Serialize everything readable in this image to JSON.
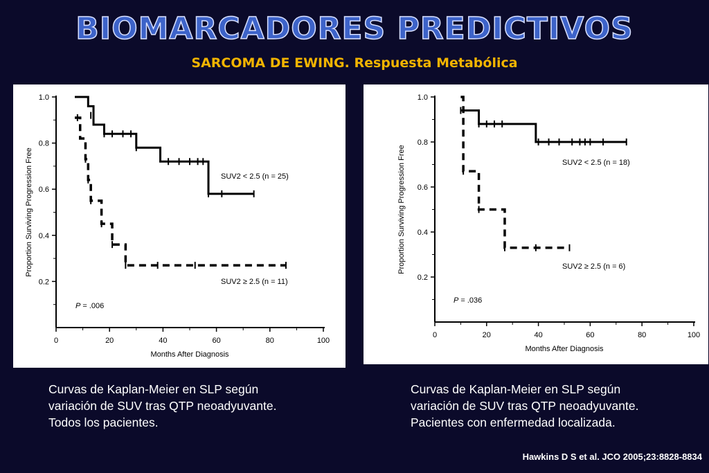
{
  "title": "BIOMARCADORES PREDICTIVOS",
  "subtitle": "SARCOMA DE EWING. Respuesta Metabólica",
  "citation": "Hawkins D S et al. JCO 2005;23:8828-8834",
  "captions": {
    "left": [
      "Curvas de Kaplan-Meier en SLP según",
      "variación de SUV tras QTP neoadyuvante.",
      "Todos los pacientes."
    ],
    "right": [
      "Curvas de Kaplan-Meier en SLP según",
      "variación de SUV tras QTP neoadyuvante.",
      "Pacientes con enfermedad localizada."
    ]
  },
  "chart_data": [
    {
      "type": "line",
      "xlabel": "Months After Diagnosis",
      "ylabel": "Proportion Surviving Progression Free",
      "xlim": [
        0,
        100
      ],
      "ylim": [
        0,
        1.0
      ],
      "x_ticks": [
        0,
        20,
        40,
        60,
        80,
        100
      ],
      "y_ticks": [
        0.2,
        0.4,
        0.6,
        0.8,
        1.0
      ],
      "pvalue": ".006",
      "series": [
        {
          "name": "SUV2 < 2.5 (n = 25)",
          "style": "solid",
          "steps": [
            [
              7,
              1.0
            ],
            [
              12,
              0.96
            ],
            [
              14,
              0.88
            ],
            [
              18,
              0.84
            ],
            [
              30,
              0.78
            ],
            [
              39,
              0.72
            ],
            [
              57,
              0.58
            ],
            [
              74,
              0.58
            ]
          ],
          "censored": [
            [
              13,
              0.92
            ],
            [
              18,
              0.84
            ],
            [
              21,
              0.84
            ],
            [
              25,
              0.84
            ],
            [
              28,
              0.84
            ],
            [
              30,
              0.78
            ],
            [
              42,
              0.72
            ],
            [
              46,
              0.72
            ],
            [
              50,
              0.72
            ],
            [
              53,
              0.72
            ],
            [
              55,
              0.72
            ],
            [
              57,
              0.58
            ],
            [
              62,
              0.58
            ],
            [
              74,
              0.58
            ]
          ]
        },
        {
          "name": "SUV2 ≥ 2.5 (n = 11)",
          "style": "dashed",
          "steps": [
            [
              7,
              0.91
            ],
            [
              9,
              0.82
            ],
            [
              11,
              0.73
            ],
            [
              12,
              0.64
            ],
            [
              13,
              0.55
            ],
            [
              17,
              0.45
            ],
            [
              21,
              0.36
            ],
            [
              26,
              0.27
            ],
            [
              86,
              0.27
            ]
          ],
          "censored": [
            [
              8,
              0.91
            ],
            [
              11,
              0.73
            ],
            [
              12,
              0.64
            ],
            [
              13,
              0.55
            ],
            [
              17,
              0.45
            ],
            [
              21,
              0.36
            ],
            [
              26,
              0.27
            ],
            [
              38,
              0.27
            ],
            [
              52,
              0.27
            ],
            [
              86,
              0.27
            ]
          ]
        }
      ]
    },
    {
      "type": "line",
      "xlabel": "Months After Diagnosis",
      "ylabel": "Proportion Surviving Progression Free",
      "xlim": [
        0,
        100
      ],
      "ylim": [
        0,
        1.0
      ],
      "x_ticks": [
        0,
        20,
        40,
        60,
        80,
        100
      ],
      "y_ticks": [
        0.2,
        0.4,
        0.6,
        0.8,
        1.0
      ],
      "pvalue": ".036",
      "series": [
        {
          "name": "SUV2 < 2.5 (n = 18)",
          "style": "solid",
          "steps": [
            [
              10,
              0.94
            ],
            [
              17,
              0.88
            ],
            [
              39,
              0.8
            ],
            [
              74,
              0.8
            ]
          ],
          "censored": [
            [
              10,
              0.94
            ],
            [
              17,
              0.88
            ],
            [
              20,
              0.88
            ],
            [
              23,
              0.88
            ],
            [
              26,
              0.88
            ],
            [
              40,
              0.8
            ],
            [
              44,
              0.8
            ],
            [
              48,
              0.8
            ],
            [
              53,
              0.8
            ],
            [
              56,
              0.8
            ],
            [
              58,
              0.8
            ],
            [
              60,
              0.8
            ],
            [
              65,
              0.8
            ],
            [
              74,
              0.8
            ]
          ]
        },
        {
          "name": "SUV2 ≥ 2.5 (n = 6)",
          "style": "dashed",
          "steps": [
            [
              10,
              1.0
            ],
            [
              11,
              0.67
            ],
            [
              17,
              0.5
            ],
            [
              27,
              0.33
            ],
            [
              52,
              0.33
            ]
          ],
          "censored": [
            [
              11,
              0.67
            ],
            [
              17,
              0.5
            ],
            [
              27,
              0.33
            ],
            [
              39,
              0.33
            ],
            [
              52,
              0.33
            ]
          ]
        }
      ]
    }
  ]
}
